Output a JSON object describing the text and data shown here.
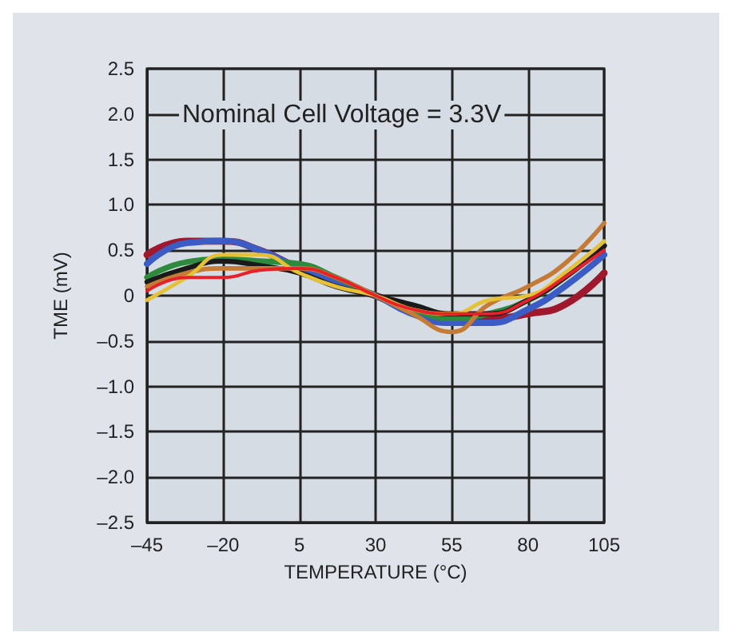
{
  "chart_data": {
    "type": "line",
    "xlabel": "TEMPERATURE (°C)",
    "ylabel": "TME (mV)",
    "annotations": [
      "Nominal Cell Voltage = 3.3V"
    ],
    "x": [
      -45,
      -32,
      -20,
      -8,
      5,
      17,
      30,
      42,
      55,
      67,
      80,
      92,
      105
    ],
    "xlim": [
      -45,
      105
    ],
    "xticks": [
      {
        "value": -45,
        "label": "–45"
      },
      {
        "value": -20,
        "label": "–20"
      },
      5,
      30,
      55,
      80,
      105
    ],
    "ylim": [
      -2.5,
      2.5
    ],
    "yticks": [
      {
        "value": -2.5,
        "label": "–2.5"
      },
      {
        "value": -2,
        "label": "–2.0"
      },
      {
        "value": -1.5,
        "label": "–1.5"
      },
      {
        "value": -1,
        "label": "–1.0"
      },
      {
        "value": -0.5,
        "label": "–0.5"
      },
      0,
      {
        "value": 0.5,
        "label": "0.5"
      },
      {
        "value": 1,
        "label": "1.0"
      },
      {
        "value": 1.5,
        "label": "1.5"
      },
      {
        "value": 2,
        "label": "2.0"
      },
      {
        "value": 2.5,
        "label": "2.5"
      }
    ],
    "grid": true,
    "marker": "none",
    "line_style": "solid",
    "series": [
      {
        "color": "#a0182e",
        "values": [
          0.45,
          0.6,
          0.6,
          0.5,
          0.3,
          0.15,
          0,
          -0.15,
          -0.25,
          -0.25,
          -0.2,
          -0.1,
          0.25
        ]
      },
      {
        "color": "#3b5cc4",
        "values": [
          0.35,
          0.58,
          0.6,
          0.5,
          0.3,
          0.15,
          0,
          -0.2,
          -0.3,
          -0.3,
          -0.15,
          0.1,
          0.45
        ]
      },
      {
        "color": "#2e8b3e",
        "values": [
          0.2,
          0.37,
          0.4,
          0.38,
          0.35,
          0.2,
          0,
          -0.15,
          -0.25,
          -0.2,
          -0.05,
          0.2,
          0.55
        ]
      },
      {
        "color": "#1a1a1a",
        "values": [
          0.15,
          0.3,
          0.38,
          0.33,
          0.25,
          0.1,
          0,
          -0.1,
          -0.2,
          -0.2,
          -0.05,
          0.2,
          0.55
        ]
      },
      {
        "color": "#c57a35",
        "values": [
          0.1,
          0.25,
          0.3,
          0.3,
          0.3,
          0.2,
          0,
          -0.2,
          -0.4,
          -0.1,
          0.1,
          0.35,
          0.8
        ]
      },
      {
        "color": "#e6c035",
        "values": [
          -0.05,
          0.2,
          0.45,
          0.45,
          0.25,
          0.1,
          0,
          -0.15,
          -0.2,
          -0.05,
          0,
          0.25,
          0.6
        ]
      },
      {
        "color": "#e8202a",
        "values": [
          0.05,
          0.2,
          0.2,
          0.28,
          0.3,
          0.2,
          0,
          -0.15,
          -0.2,
          -0.2,
          -0.05,
          0.2,
          0.5
        ]
      }
    ]
  }
}
